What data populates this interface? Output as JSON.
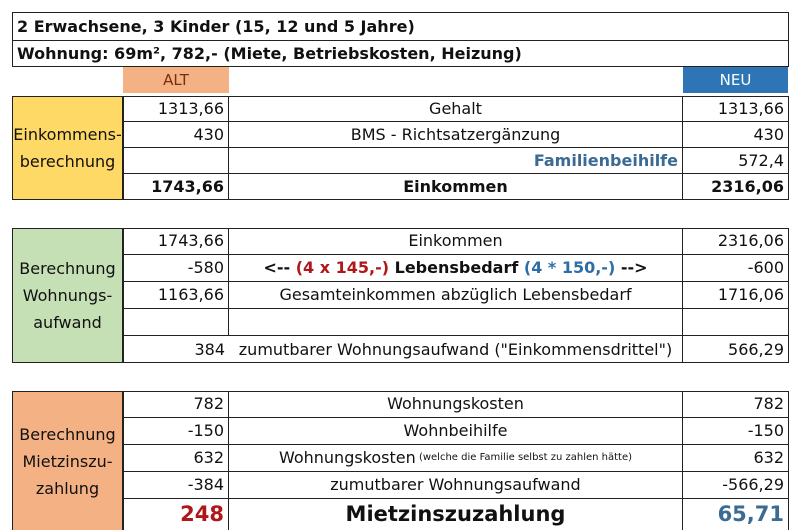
{
  "header": {
    "line1": "2 Erwachsene, 3 Kinder (15, 12 und 5 Jahre)",
    "line2": "Wohnung: 69m², 782,- (Miete, Betriebskosten, Heizung)"
  },
  "columns": {
    "alt": "ALT",
    "neu": "NEU"
  },
  "colors": {
    "alt_header": "#f4b183",
    "neu_header": "#2e75b6",
    "group1": "#ffd966",
    "group2": "#c5e0b4",
    "group3": "#f4b183"
  },
  "groups": {
    "einkommen": {
      "line1": "Einkommens-",
      "line2": "berechnung"
    },
    "wohnung": {
      "line1": "Berechnung",
      "line2": "Wohnungs-",
      "line3": "aufwand"
    },
    "mietzins": {
      "line1": "Berechnung",
      "line2": "Mietzinszu-",
      "line3": "zahlung"
    }
  },
  "rows": {
    "gehalt": {
      "alt": "1313,66",
      "label": "Gehalt",
      "neu": "1313,66"
    },
    "bms": {
      "alt": "430",
      "label": "BMS - Richtsatzergänzung",
      "neu": "430"
    },
    "familie": {
      "alt": "",
      "label": "Familienbeihilfe",
      "neu": "572,4"
    },
    "einkommen_sum": {
      "alt": "1743,66",
      "label": "Einkommen",
      "neu": "2316,06"
    },
    "einkommen2": {
      "alt": "1743,66",
      "label": "Einkommen",
      "neu": "2316,06"
    },
    "lebensbedarf": {
      "alt": "-580",
      "label_prefix": "<-- ",
      "label_alt_calc": "(4 x 145,-)",
      "label_mid": " Lebensbedarf ",
      "label_neu_calc": "(4 * 150,-)",
      "label_suffix": " -->",
      "neu": "-600"
    },
    "gesamt": {
      "alt": "1163,66",
      "label": "Gesamteinkommen abzüglich Lebensbedarf",
      "neu": "1716,06"
    },
    "zumutbar": {
      "alt": "384",
      "label": "zumutbarer Wohnungsaufwand (\"Einkommensdrittel\")",
      "neu": "566,29"
    },
    "wohnkosten": {
      "alt": "782",
      "label": "Wohnungskosten",
      "neu": "782"
    },
    "wohnbeihilfe": {
      "alt": "-150",
      "label": "Wohnbeihilfe",
      "neu": "-150"
    },
    "wohnkosten2": {
      "alt": "632",
      "label": "Wohnungskosten",
      "label_note": " (welche die Familie selbst zu zahlen hätte)",
      "neu": "632"
    },
    "zumutbar2": {
      "alt": "-384",
      "label": "zumutbarer Wohnungsaufwand",
      "neu": "-566,29"
    },
    "result": {
      "alt": "248",
      "label": "Mietzinszuzahlung",
      "neu": "65,71"
    }
  }
}
